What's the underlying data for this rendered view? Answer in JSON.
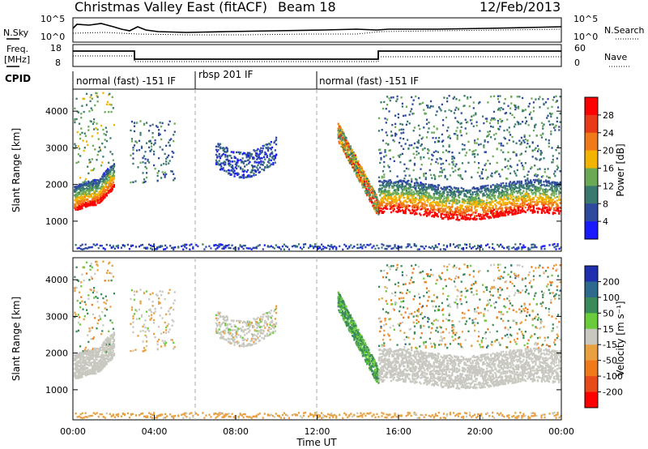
{
  "header": {
    "station": "Christmas Valley East (fitACF)",
    "beam": "Beam 18",
    "date": "12/Feb/2013"
  },
  "noise_panel": {
    "left_label": "N.Sky",
    "right_label": "N.Search",
    "ytick_left": [
      "10^5",
      "10^0"
    ],
    "ytick_right": [
      "10^5",
      "10^0"
    ]
  },
  "freq_panel": {
    "left_label_line1": "Freq.",
    "left_label_line2": "[MHz]",
    "right_label": "Nave",
    "ytick_left": [
      "18",
      "8"
    ],
    "ytick_right": [
      "60",
      "0"
    ]
  },
  "cpid": {
    "label": "CPID",
    "segments": [
      {
        "name": "normal (fast) -151 IF",
        "start_hour": 0.0,
        "end_hour": 6.0
      },
      {
        "name": "rbsp 201 IF",
        "start_hour": 6.0,
        "end_hour": 12.0
      },
      {
        "name": "normal (fast) -151 IF",
        "start_hour": 12.0,
        "end_hour": 24.0
      }
    ]
  },
  "chart_data": [
    {
      "type": "heatmap",
      "title": "",
      "ylabel": "Slant Range [km]",
      "xlabel": "Time UT",
      "xlim": [
        0,
        24
      ],
      "ylim": [
        180,
        4600
      ],
      "xticks": [
        "00:00",
        "04:00",
        "08:00",
        "12:00",
        "16:00",
        "20:00",
        "00:00"
      ],
      "yticks": [
        1000,
        2000,
        3000,
        4000
      ],
      "colorbar": {
        "label": "Power [dB]",
        "ticks": [
          "4",
          "8",
          "12",
          "16",
          "20",
          "24",
          "28"
        ],
        "colors": [
          "#1a1aff",
          "#2d4a9e",
          "#3a7a6e",
          "#6aaa55",
          "#f2b400",
          "#f07a1a",
          "#e83a1a",
          "#ff0000"
        ]
      }
    },
    {
      "type": "heatmap",
      "title": "",
      "ylabel": "Slant Range [km]",
      "xlabel": "Time UT",
      "xlim": [
        0,
        24
      ],
      "ylim": [
        180,
        4600
      ],
      "xticks": [
        "00:00",
        "04:00",
        "08:00",
        "12:00",
        "16:00",
        "20:00",
        "00:00"
      ],
      "yticks": [
        1000,
        2000,
        3000,
        4000
      ],
      "colorbar": {
        "label": "Velocity [m s⁻¹]",
        "ticks": [
          "200",
          "100",
          "50",
          "15",
          "-15",
          "-50",
          "-100",
          "-200"
        ],
        "colors": [
          "#1f2fb0",
          "#2d6a8e",
          "#3a8a5a",
          "#6acc3a",
          "#c8c8c0",
          "#e8a040",
          "#f07a1a",
          "#e84a1a",
          "#ff0000"
        ]
      }
    }
  ],
  "xaxis": {
    "label": "Time UT"
  }
}
